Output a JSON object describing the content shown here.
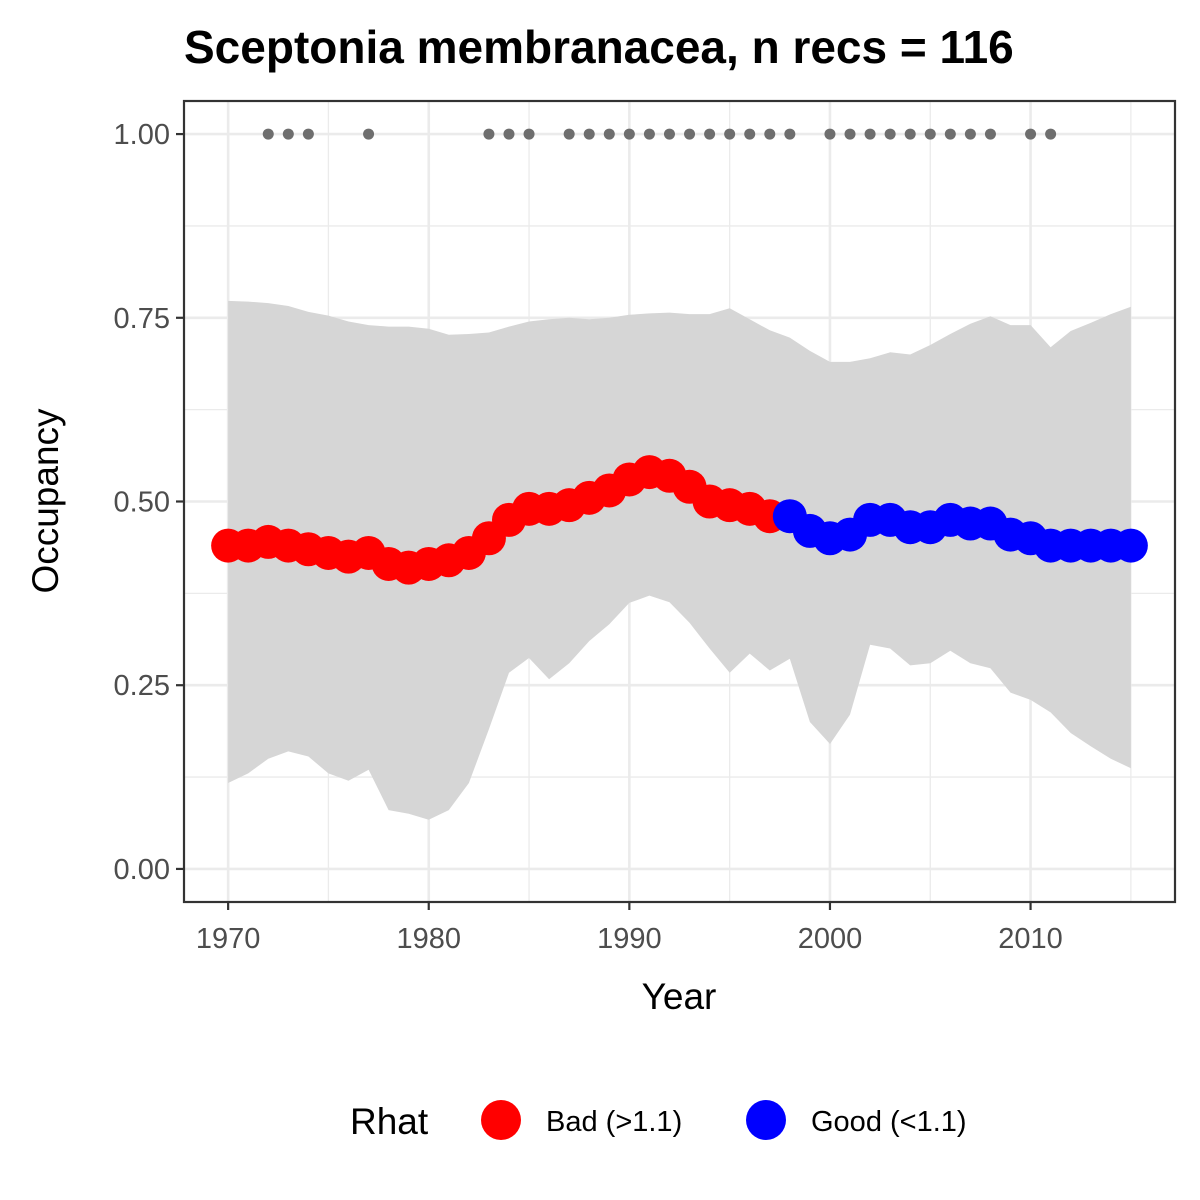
{
  "chart_data": {
    "type": "line",
    "title": "Sceptonia membranacea, n recs = 116",
    "xlabel": "Year",
    "ylabel": "Occupancy",
    "xlim": [
      1967.8,
      1016.8
    ],
    "ylim": [
      -0.045,
      1.045
    ],
    "x_ticks": [
      1970,
      1980,
      1990,
      2000,
      2010
    ],
    "x_tick_labels": [
      "1970",
      "1980",
      "1990",
      "2000",
      "2010"
    ],
    "y_ticks": [
      0,
      0.25,
      0.5,
      0.75,
      1.0
    ],
    "y_tick_labels": [
      "0.00",
      "0.25",
      "0.50",
      "0.75",
      "1.00"
    ],
    "grid": true,
    "legend_position": "bottom",
    "legend": {
      "title": "Rhat",
      "entries": [
        {
          "label": "Bad (>1.1)",
          "color": "#ff0000"
        },
        {
          "label": "Good (<1.1)",
          "color": "#0000ff"
        }
      ]
    },
    "colors": {
      "bad": "#ff0000",
      "good": "#0000ff",
      "ribbon": "#d6d6d6",
      "record_points": "#6e6e6e"
    },
    "years": [
      1970,
      1971,
      1972,
      1973,
      1974,
      1975,
      1976,
      1977,
      1978,
      1979,
      1980,
      1981,
      1982,
      1983,
      1984,
      1985,
      1986,
      1987,
      1988,
      1989,
      1990,
      1991,
      1992,
      1993,
      1994,
      1995,
      1996,
      1997,
      1998,
      1999,
      2000,
      2001,
      2002,
      2003,
      2004,
      2005,
      2006,
      2007,
      2008,
      2009,
      2010,
      2011,
      2012,
      2013,
      2014,
      2015
    ],
    "series": [
      {
        "name": "Occupancy",
        "values": [
          0.44,
          0.44,
          0.445,
          0.44,
          0.435,
          0.43,
          0.425,
          0.43,
          0.415,
          0.41,
          0.415,
          0.42,
          0.43,
          0.45,
          0.475,
          0.49,
          0.49,
          0.495,
          0.505,
          0.515,
          0.53,
          0.54,
          0.535,
          0.52,
          0.5,
          0.495,
          0.49,
          0.48,
          0.48,
          0.46,
          0.45,
          0.455,
          0.475,
          0.475,
          0.465,
          0.465,
          0.475,
          0.47,
          0.47,
          0.455,
          0.45,
          0.44,
          0.44,
          0.44,
          0.44,
          0.44
        ],
        "rhat_status": [
          "bad",
          "bad",
          "bad",
          "bad",
          "bad",
          "bad",
          "bad",
          "bad",
          "bad",
          "bad",
          "bad",
          "bad",
          "bad",
          "bad",
          "bad",
          "bad",
          "bad",
          "bad",
          "bad",
          "bad",
          "bad",
          "bad",
          "bad",
          "bad",
          "bad",
          "bad",
          "bad",
          "bad",
          "good",
          "good",
          "good",
          "good",
          "good",
          "good",
          "good",
          "good",
          "good",
          "good",
          "good",
          "good",
          "good",
          "good",
          "good",
          "good",
          "good",
          "good"
        ]
      }
    ],
    "ribbon_upper": [
      0.773,
      0.772,
      0.77,
      0.766,
      0.758,
      0.753,
      0.745,
      0.74,
      0.738,
      0.738,
      0.735,
      0.727,
      0.728,
      0.73,
      0.738,
      0.745,
      0.748,
      0.75,
      0.748,
      0.75,
      0.754,
      0.756,
      0.757,
      0.755,
      0.755,
      0.763,
      0.748,
      0.733,
      0.723,
      0.705,
      0.69,
      0.69,
      0.695,
      0.703,
      0.7,
      0.713,
      0.728,
      0.742,
      0.752,
      0.74,
      0.74,
      0.71,
      0.732,
      0.743,
      0.755,
      0.765
    ],
    "ribbon_lower": [
      0.117,
      0.13,
      0.15,
      0.16,
      0.153,
      0.13,
      0.12,
      0.135,
      0.08,
      0.075,
      0.067,
      0.08,
      0.117,
      0.19,
      0.267,
      0.287,
      0.258,
      0.28,
      0.31,
      0.333,
      0.362,
      0.372,
      0.363,
      0.335,
      0.3,
      0.267,
      0.293,
      0.27,
      0.286,
      0.2,
      0.17,
      0.21,
      0.305,
      0.3,
      0.277,
      0.28,
      0.297,
      0.28,
      0.273,
      0.24,
      0.23,
      0.213,
      0.185,
      0.167,
      0.15,
      0.137
    ],
    "record_years": [
      1972,
      1973,
      1974,
      1977,
      1983,
      1984,
      1985,
      1987,
      1988,
      1989,
      1990,
      1991,
      1992,
      1993,
      1994,
      1995,
      1996,
      1997,
      1998,
      2000,
      2001,
      2002,
      2003,
      2004,
      2005,
      2006,
      2007,
      2008,
      2010,
      2011
    ],
    "record_value": 1.0
  }
}
